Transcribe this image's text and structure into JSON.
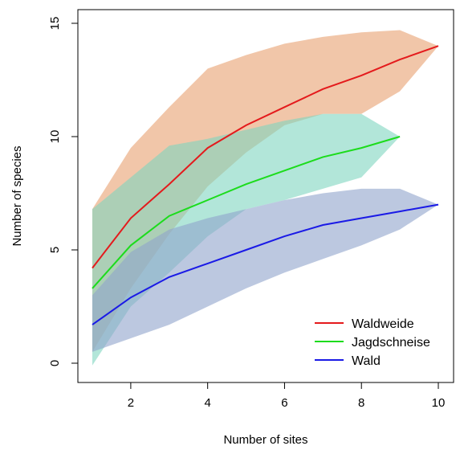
{
  "chart_data": {
    "type": "line",
    "title": "",
    "xlabel": "Number of sites",
    "ylabel": "Number of species",
    "xlim": [
      1,
      10
    ],
    "ylim": [
      0,
      15
    ],
    "xticks": [
      2,
      4,
      6,
      8,
      10
    ],
    "yticks": [
      0,
      5,
      10,
      15
    ],
    "grid": false,
    "legend_position": "bottom-right",
    "series": [
      {
        "name": "Waldweide",
        "color": "#e41a1c",
        "band_color": "#e8a070",
        "x": [
          1,
          2,
          3,
          4,
          5,
          6,
          7,
          8,
          9,
          10
        ],
        "y": [
          4.2,
          6.4,
          7.9,
          9.5,
          10.5,
          11.3,
          12.1,
          12.7,
          13.4,
          14.0
        ],
        "upper": [
          6.8,
          9.5,
          11.3,
          13.0,
          13.6,
          14.1,
          14.4,
          14.6,
          14.7,
          14.0
        ],
        "lower": [
          0.5,
          3.3,
          5.7,
          7.8,
          9.3,
          10.5,
          11.0,
          11.0,
          12.0,
          14.0
        ]
      },
      {
        "name": "Jagdschneise",
        "color": "#1cdc1c",
        "band_color": "#7fd6c0",
        "x": [
          1,
          2,
          3,
          4,
          5,
          6,
          7,
          8,
          9
        ],
        "y": [
          3.3,
          5.2,
          6.5,
          7.2,
          7.9,
          8.5,
          9.1,
          9.5,
          10.0
        ],
        "upper": [
          6.8,
          8.2,
          9.6,
          9.9,
          10.3,
          10.7,
          11.0,
          11.0,
          10.0
        ],
        "lower": [
          -0.1,
          2.5,
          4.0,
          5.6,
          6.8,
          7.2,
          7.7,
          8.2,
          10.0
        ]
      },
      {
        "name": "Wald",
        "color": "#1a1ae6",
        "band_color": "#8fa3cc",
        "x": [
          1,
          2,
          3,
          4,
          5,
          6,
          7,
          8,
          9,
          10
        ],
        "y": [
          1.7,
          2.9,
          3.8,
          4.4,
          5.0,
          5.6,
          6.1,
          6.4,
          6.7,
          7.0
        ],
        "upper": [
          3.0,
          4.9,
          5.9,
          6.4,
          6.8,
          7.2,
          7.5,
          7.7,
          7.7,
          7.0
        ],
        "lower": [
          0.5,
          1.1,
          1.7,
          2.5,
          3.3,
          4.0,
          4.6,
          5.2,
          5.9,
          7.0
        ]
      }
    ]
  }
}
